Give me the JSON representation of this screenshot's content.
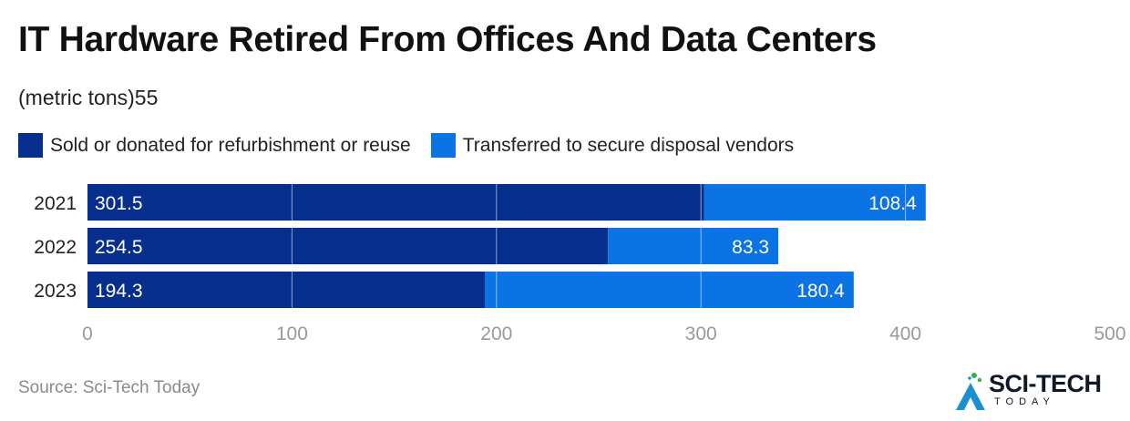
{
  "title": "IT Hardware Retired From Offices And Data Centers",
  "subtitle": "(metric tons)55",
  "source": "Source: Sci-Tech Today",
  "logo": {
    "main": "SCI-TECH",
    "sub": "TODAY"
  },
  "colors": {
    "series1": "#062f8d",
    "series2": "#0b73e3",
    "grid": "#ffffff",
    "tick": "#9a9a9a"
  },
  "chart_data": {
    "type": "bar",
    "orientation": "horizontal",
    "stacked": true,
    "title": "IT Hardware Retired From Offices And Data Centers",
    "subtitle": "(metric tons)55",
    "categories": [
      "2021",
      "2022",
      "2023"
    ],
    "series": [
      {
        "name": "Sold or donated for refurbishment or reuse",
        "values": [
          301.5,
          254.5,
          194.3
        ]
      },
      {
        "name": "Transferred to secure disposal vendors",
        "values": [
          108.4,
          83.3,
          180.4
        ]
      }
    ],
    "xlim": [
      0,
      500
    ],
    "xticks": [
      0,
      100,
      200,
      300,
      400,
      500
    ],
    "grid": true,
    "legend": "top-left"
  }
}
